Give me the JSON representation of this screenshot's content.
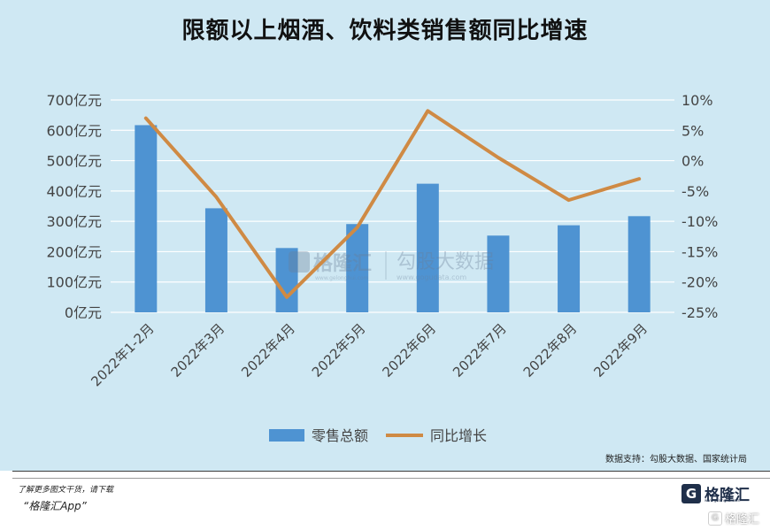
{
  "title": "限额以上烟酒、饮料类销售额同比增速",
  "source": "数据支持：勾股大数据、国家统计局",
  "watermark": {
    "left_name": "格隆汇",
    "left_url": "www.gelonghui.com",
    "right_name": "勾股大数据",
    "right_url": "www.gogudata.com"
  },
  "footer": {
    "promo_line1": "了解更多图文干货，请下载",
    "promo_line2": "“格隆汇App”",
    "brand_name": "格隆汇",
    "brand_url": "www.gelonghui.com",
    "corner_mark": "格隆汇"
  },
  "colors": {
    "bar": "#4e93d2",
    "line": "#cf8a44",
    "background": "#cfe8f3",
    "grid": "#ffffff"
  },
  "chart_data": {
    "type": "bar",
    "categories": [
      "2022年1-2月",
      "2022年3月",
      "2022年4月",
      "2022年5月",
      "2022年6月",
      "2022年7月",
      "2022年8月",
      "2022年9月"
    ],
    "series": [
      {
        "name": "零售总额",
        "type": "bar",
        "axis": "left",
        "unit": "亿元",
        "values": [
          617,
          343,
          212,
          291,
          424,
          253,
          287,
          317
        ]
      },
      {
        "name": "同比增长",
        "type": "line",
        "axis": "right",
        "unit": "%",
        "values": [
          7.0,
          -6.0,
          -22.5,
          -11.0,
          8.2,
          0.5,
          -6.5,
          -3.0
        ]
      }
    ],
    "y_left": {
      "ticks": [
        "0亿元",
        "100亿元",
        "200亿元",
        "300亿元",
        "400亿元",
        "500亿元",
        "600亿元",
        "700亿元"
      ],
      "min": 0,
      "max": 700,
      "step": 100
    },
    "y_right": {
      "ticks": [
        "-25%",
        "-20%",
        "-15%",
        "-10%",
        "-5%",
        "0%",
        "5%",
        "10%"
      ],
      "min": -25,
      "max": 10,
      "step": 5
    },
    "grid": true,
    "legend_position": "bottom"
  }
}
